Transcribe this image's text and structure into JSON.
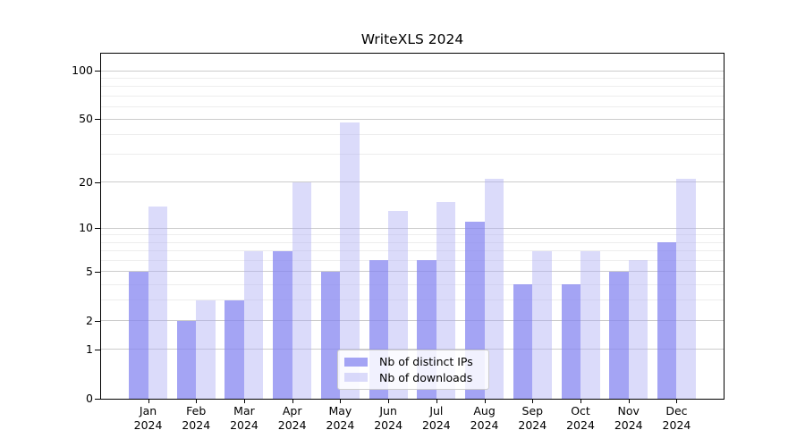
{
  "title": "WriteXLS 2024",
  "colors": {
    "series_ips": "rgba(134,134,240,0.75)",
    "series_downloads": "rgba(173,173,244,0.44)",
    "grid_major": "#cccccc",
    "grid_minor": "#ededed",
    "axis": "#000000",
    "background": "#ffffff"
  },
  "chart_data": {
    "type": "bar",
    "title": "WriteXLS 2024",
    "y_scale": "log1p",
    "xlabel": "",
    "ylabel": "",
    "grid": true,
    "legend_position": "lower center",
    "categories": [
      "Jan 2024",
      "Feb 2024",
      "Mar 2024",
      "Apr 2024",
      "May 2024",
      "Jun 2024",
      "Jul 2024",
      "Aug 2024",
      "Sep 2024",
      "Oct 2024",
      "Nov 2024",
      "Dec 2024"
    ],
    "series": [
      {
        "name": "Nb of distinct IPs",
        "color": "rgba(134,134,240,0.75)",
        "values": [
          5,
          2,
          3,
          7,
          5,
          6,
          6,
          11,
          4,
          4,
          5,
          8
        ]
      },
      {
        "name": "Nb of downloads",
        "color": "rgba(173,173,244,0.44)",
        "values": [
          14,
          3,
          7,
          20,
          48,
          13,
          15,
          21,
          7,
          7,
          6,
          21
        ]
      }
    ],
    "y_ticks": [
      0,
      1,
      2,
      5,
      10,
      20,
      50,
      100
    ],
    "y_minor_gridlines": [
      3,
      4,
      6,
      7,
      8,
      9,
      30,
      40,
      60,
      70,
      80,
      90
    ],
    "ylim": [
      0,
      127
    ]
  }
}
